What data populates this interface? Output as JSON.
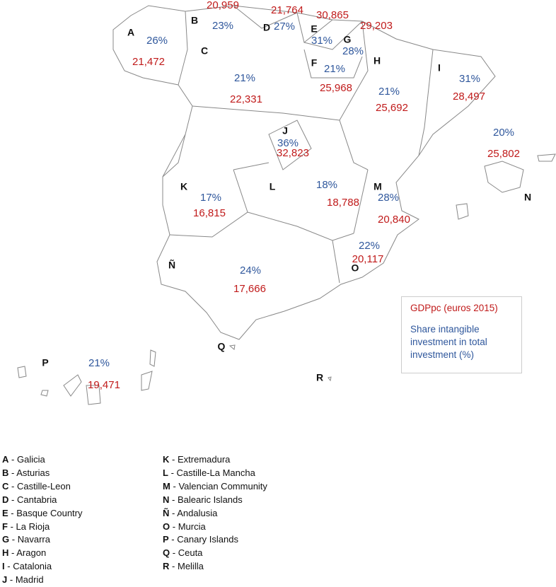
{
  "separator": "-",
  "legend": {
    "gdp": "GDPpc (euros 2015)",
    "share": "Share intangible investment in total investment (%)"
  },
  "regions": [
    {
      "letter": "A",
      "name": "Galicia",
      "share": "26%",
      "gdp": "21,472"
    },
    {
      "letter": "B",
      "name": "Asturias",
      "share": "23%",
      "gdp": "20,959"
    },
    {
      "letter": "C",
      "name": "Castille-Leon",
      "share": "21%",
      "gdp": "22,331"
    },
    {
      "letter": "D",
      "name": "Cantabria",
      "share": "27%",
      "gdp": "21,764"
    },
    {
      "letter": "E",
      "name": "Basque Country",
      "share": "31%",
      "gdp": "30,865"
    },
    {
      "letter": "F",
      "name": "La Rioja",
      "share": "21%",
      "gdp": "25,968"
    },
    {
      "letter": "G",
      "name": "Navarra",
      "share": "28%",
      "gdp": "29,203"
    },
    {
      "letter": "H",
      "name": "Aragon",
      "share": "21%",
      "gdp": "25,692"
    },
    {
      "letter": "I",
      "name": "Catalonia",
      "share": "31%",
      "gdp": "28,497"
    },
    {
      "letter": "J",
      "name": "Madrid",
      "share": "36%",
      "gdp": "32,823"
    },
    {
      "letter": "K",
      "name": "Extremadura",
      "share": "17%",
      "gdp": "16,815"
    },
    {
      "letter": "L",
      "name": "Castille-La Mancha",
      "share": "18%",
      "gdp": "18,788"
    },
    {
      "letter": "M",
      "name": "Valencian Community",
      "share": "28%",
      "gdp": "20,840"
    },
    {
      "letter": "N",
      "name": "Balearic Islands",
      "share": "20%",
      "gdp": "25,802"
    },
    {
      "letter": "Ñ",
      "name": "Andalusia",
      "share": "24%",
      "gdp": "17,666"
    },
    {
      "letter": "O",
      "name": "Murcia",
      "share": "22%",
      "gdp": "20,117"
    },
    {
      "letter": "P",
      "name": "Canary Islands",
      "share": "21%",
      "gdp": "19,471"
    },
    {
      "letter": "Q",
      "name": "Ceuta"
    },
    {
      "letter": "R",
      "name": "Melilla"
    }
  ]
}
